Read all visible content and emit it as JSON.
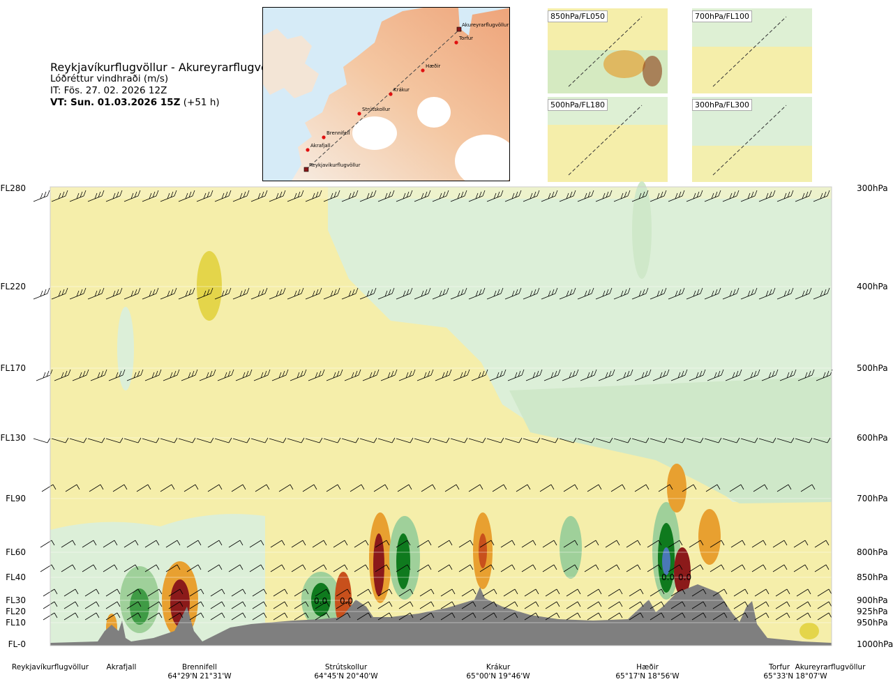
{
  "title": "Reykjavíkurflugvöllur - Akureyrarflugvöllur",
  "subtitle": "Lóðréttur vindhraði (m/s)",
  "issue_time": "IT: Fös. 27. 02. 2026 12Z",
  "valid_time_bold": "VT: Sun. 01.03.2026 15Z",
  "valid_time_rest": "(+51 h)",
  "map": {
    "stations": [
      {
        "name": "Reykjavíkurflugvöllur",
        "kind": "airport"
      },
      {
        "name": "Akrafjall",
        "kind": "point"
      },
      {
        "name": "Brennifell",
        "kind": "point"
      },
      {
        "name": "Strútskollur",
        "kind": "point"
      },
      {
        "name": "Krákur",
        "kind": "point"
      },
      {
        "name": "Hæðir",
        "kind": "point"
      },
      {
        "name": "Torfur",
        "kind": "point"
      },
      {
        "name": "Akureyrarflugvöllur",
        "kind": "airport"
      }
    ]
  },
  "mini_maps": [
    {
      "label": "850hPa/FL050"
    },
    {
      "label": "700hPa/FL100"
    },
    {
      "label": "500hPa/FL180"
    },
    {
      "label": "300hPa/FL300"
    }
  ],
  "chart_data": {
    "type": "heatmap",
    "title": "Lóðréttur vindhraði (m/s)",
    "levels": [
      {
        "fl": "FL280",
        "hpa": "300hPa"
      },
      {
        "fl": "FL220",
        "hpa": "400hPa"
      },
      {
        "fl": "FL170",
        "hpa": "500hPa"
      },
      {
        "fl": "FL130",
        "hpa": "600hPa"
      },
      {
        "fl": "FL90",
        "hpa": "700hPa"
      },
      {
        "fl": "FL60",
        "hpa": "800hPa"
      },
      {
        "fl": "FL40",
        "hpa": "850hPa"
      },
      {
        "fl": "FL30",
        "hpa": "900hPa"
      },
      {
        "fl": "FL20",
        "hpa": "925hPa"
      },
      {
        "fl": "FL10",
        "hpa": "950hPa"
      },
      {
        "fl": "FL-0",
        "hpa": "1000hPa"
      }
    ],
    "locations": [
      {
        "name": "Reykjavíkurflugvöllur",
        "coord": ""
      },
      {
        "name": "Akrafjall",
        "coord": ""
      },
      {
        "name": "Brennifell",
        "coord": "64°29'N 21°31'W"
      },
      {
        "name": "Strútskollur",
        "coord": "64°45'N 20°40'W"
      },
      {
        "name": "Krákur",
        "coord": "65°00'N 19°46'W"
      },
      {
        "name": "Hæðir",
        "coord": "65°17'N 18°56'W"
      },
      {
        "name": "Torfur",
        "coord": "65°33'N 18°07'W"
      },
      {
        "name": "Akureyrarflugvöllur",
        "coord": ""
      }
    ],
    "contour_labels": [
      "0.0",
      "0.0",
      "0.0",
      "0.0"
    ],
    "colors": {
      "strong_down": "#8b1a1a",
      "down": "#c8501c",
      "mod_down": "#e8a030",
      "weak_down": "#f2e69a",
      "calm": "#fdfbe2",
      "weak_up": "#dcefd8",
      "mod_up": "#9fd09a",
      "up": "#3f9b45",
      "strong_up": "#0f7a1e",
      "very_strong_up": "#4a78b8",
      "terrain": "#7f7f7f"
    }
  }
}
